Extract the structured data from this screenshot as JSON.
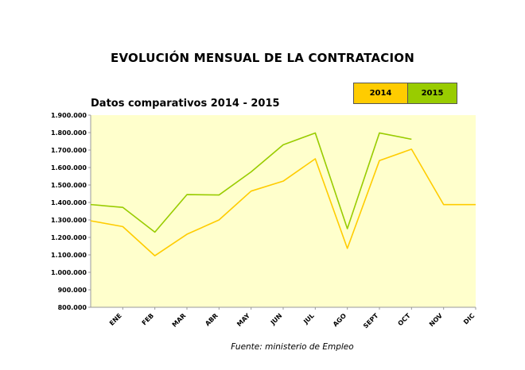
{
  "title": "EVOLUCIÓN MENSUAL DE LA CONTRATACION",
  "source": "Fuente: ministerio de Empleo",
  "chart_data": {
    "type": "line",
    "title": "Datos comparativos  2014 - 2015",
    "categories": [
      "ENE",
      "FEB",
      "MAR",
      "ABR",
      "MAY",
      "JUN",
      "JUL",
      "AGO",
      "SEPT",
      "OCT",
      "NOV",
      "DIC"
    ],
    "yticks": [
      "800.000",
      "900.000",
      "1.000.000",
      "1.100.000",
      "1.200.000",
      "1.300.000",
      "1.400.000",
      "1.500.000",
      "1.600.000",
      "1.700.000",
      "1.800.000",
      "1.900.000"
    ],
    "ylim": [
      800000,
      1900000
    ],
    "grid": false,
    "legend_position": "top-right",
    "series": [
      {
        "name": "2014",
        "color": "#FFCC00",
        "x": [
          0,
          1,
          2,
          3,
          4,
          5,
          6,
          7,
          8,
          9,
          10,
          11,
          12
        ],
        "values": [
          1295000,
          1262000,
          1095000,
          1218000,
          1300000,
          1465000,
          1522000,
          1650000,
          1137000,
          1640000,
          1705000,
          1388000,
          1388000
        ]
      },
      {
        "name": "2015",
        "color": "#99CC00",
        "x": [
          0,
          1,
          2,
          3,
          4,
          5,
          6,
          7,
          8,
          9,
          10
        ],
        "values": [
          1388000,
          1372000,
          1230000,
          1445000,
          1443000,
          1575000,
          1730000,
          1798000,
          1250000,
          1798000,
          1762000
        ]
      }
    ]
  }
}
